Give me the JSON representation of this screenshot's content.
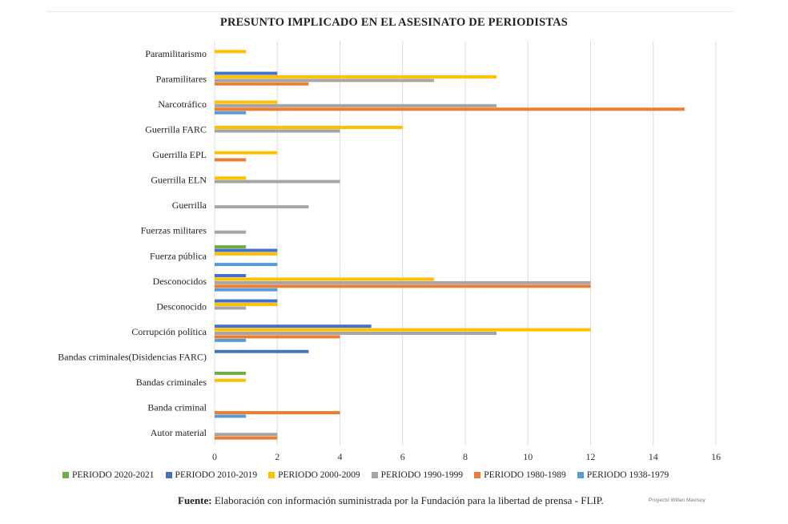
{
  "chart_data": {
    "type": "bar",
    "orientation": "horizontal",
    "title": "PRESUNTO IMPLICADO EN EL ASESINATO DE PERIODISTAS",
    "xlabel": "",
    "ylabel": "",
    "xlim": [
      0,
      16
    ],
    "x_ticks": [
      "0",
      "2",
      "4",
      "6",
      "8",
      "10",
      "12",
      "14",
      "16"
    ],
    "grid": "vertical",
    "legend_position": "bottom",
    "categories": [
      "Paramilitarismo",
      "Paramilitares",
      "Narcotráfico",
      "Guerrilla FARC",
      "Guerrilla EPL",
      "Guerrilla ELN",
      "Guerrilla",
      "Fuerzas militares",
      "Fuerza pública",
      "Desconocidos",
      "Desconocido",
      "Corrupción política",
      "Bandas criminales(Disidencias FARC)",
      "Bandas criminales",
      "Banda criminal",
      "Autor material"
    ],
    "series": [
      {
        "name": "PERIODO 2020-2021",
        "color": "#70AD47",
        "values": [
          0,
          0,
          0,
          0,
          0,
          0,
          0,
          0,
          1,
          0,
          0,
          0,
          0,
          1,
          0,
          0
        ]
      },
      {
        "name": "PERIODO 2010-2019",
        "color": "#4472C4",
        "values": [
          0,
          2,
          0,
          0,
          0,
          0,
          0,
          0,
          2,
          1,
          2,
          5,
          3,
          0,
          0,
          0
        ]
      },
      {
        "name": "PERIODO 2000-2009",
        "color": "#FFC000",
        "values": [
          1,
          9,
          2,
          6,
          2,
          1,
          0,
          0,
          2,
          7,
          2,
          12,
          0,
          1,
          0,
          0
        ]
      },
      {
        "name": "PERIODO 1990-1999",
        "color": "#A5A5A5",
        "values": [
          0,
          7,
          9,
          4,
          0,
          4,
          3,
          1,
          0,
          12,
          1,
          9,
          0,
          0,
          0,
          2
        ]
      },
      {
        "name": "PERIODO 1980-1989",
        "color": "#ED7D31",
        "values": [
          0,
          3,
          15,
          0,
          1,
          0,
          0,
          0,
          0,
          12,
          0,
          4,
          0,
          0,
          4,
          2
        ]
      },
      {
        "name": "PERIODO 1938-1979",
        "color": "#5B9BD5",
        "values": [
          0,
          0,
          1,
          0,
          0,
          0,
          0,
          0,
          2,
          2,
          0,
          1,
          0,
          0,
          1,
          0
        ]
      }
    ]
  },
  "source": {
    "label": "Fuente:",
    "text": " Elaboración con información suministrada por la Fundación para la libertad de prensa - FLIP."
  },
  "credit": "Proyectó Willan Mavisoy"
}
